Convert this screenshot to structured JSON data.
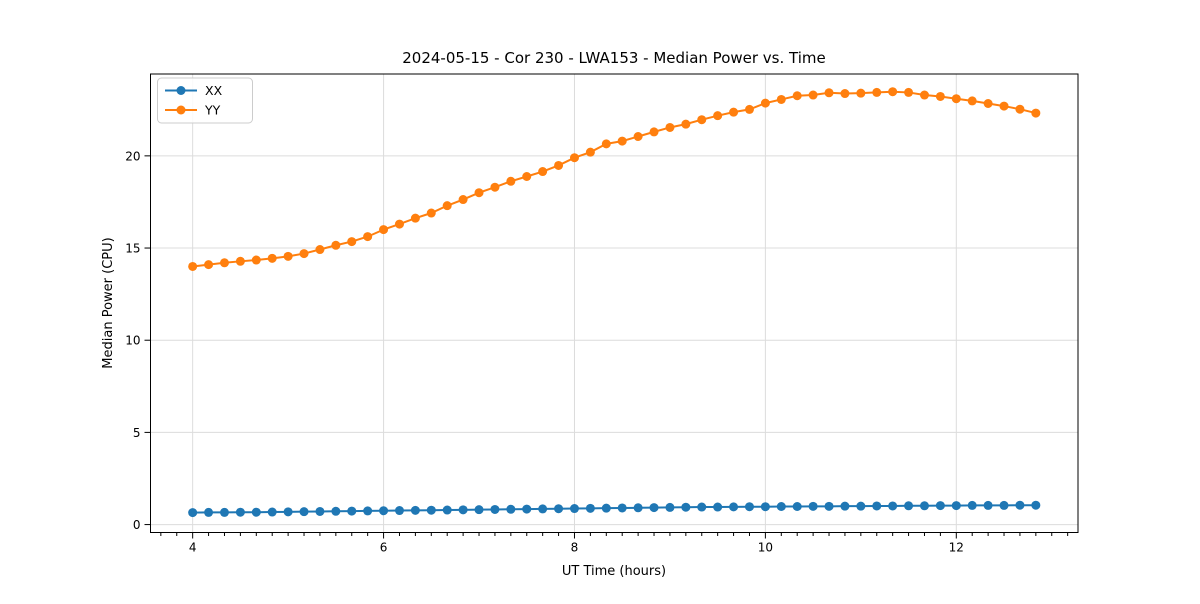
{
  "figure": {
    "background": "#ffffff"
  },
  "chart_data": {
    "type": "line",
    "title": "2024-05-15 - Cor 230 - LWA153 - Median Power vs. Time",
    "xlabel": "UT Time (hours)",
    "ylabel": "Median Power (CPU)",
    "xlim": [
      3.5583,
      13.275
    ],
    "ylim": [
      -0.43,
      24.44
    ],
    "x_major_ticks": [
      4,
      6,
      8,
      10,
      12
    ],
    "x_tick_labels": [
      "4",
      "6",
      "8",
      "10",
      "12"
    ],
    "x_minor_tick_step": 0.166667,
    "y_major_ticks": [
      0,
      5,
      10,
      15,
      20
    ],
    "y_tick_labels": [
      "0",
      "5",
      "10",
      "15",
      "20"
    ],
    "grid": true,
    "legend": {
      "position": "upper-left",
      "entries": [
        "XX",
        "YY"
      ]
    },
    "x": [
      4.0,
      4.1667,
      4.3333,
      4.5,
      4.6667,
      4.8333,
      5.0,
      5.1667,
      5.3333,
      5.5,
      5.6667,
      5.8333,
      6.0,
      6.1667,
      6.3333,
      6.5,
      6.6667,
      6.8333,
      7.0,
      7.1667,
      7.3333,
      7.5,
      7.6667,
      7.8333,
      8.0,
      8.1667,
      8.3333,
      8.5,
      8.6667,
      8.8333,
      9.0,
      9.1667,
      9.3333,
      9.5,
      9.6667,
      9.8333,
      10.0,
      10.1667,
      10.3333,
      10.5,
      10.6667,
      10.8333,
      11.0,
      11.1667,
      11.3333,
      11.5,
      11.6667,
      11.8333,
      12.0,
      12.1667,
      12.3333,
      12.5,
      12.6667,
      12.8333
    ],
    "series": [
      {
        "name": "XX",
        "color": "#1f77b4",
        "marker": "circle",
        "values": [
          0.65,
          0.66,
          0.66,
          0.67,
          0.67,
          0.68,
          0.69,
          0.7,
          0.71,
          0.72,
          0.73,
          0.74,
          0.75,
          0.76,
          0.77,
          0.78,
          0.79,
          0.8,
          0.81,
          0.82,
          0.83,
          0.84,
          0.85,
          0.86,
          0.87,
          0.88,
          0.89,
          0.9,
          0.91,
          0.92,
          0.93,
          0.94,
          0.95,
          0.95,
          0.96,
          0.97,
          0.97,
          0.98,
          0.98,
          0.99,
          0.99,
          1.0,
          1.0,
          1.01,
          1.01,
          1.02,
          1.02,
          1.03,
          1.03,
          1.04,
          1.04,
          1.04,
          1.05,
          1.05
        ]
      },
      {
        "name": "YY",
        "color": "#ff7f0e",
        "marker": "circle",
        "values": [
          14.0,
          14.1,
          14.2,
          14.28,
          14.35,
          14.44,
          14.55,
          14.7,
          14.92,
          15.15,
          15.35,
          15.62,
          16.0,
          16.3,
          16.62,
          16.9,
          17.3,
          17.63,
          18.0,
          18.3,
          18.62,
          18.88,
          19.15,
          19.48,
          19.9,
          20.2,
          20.65,
          20.8,
          21.05,
          21.3,
          21.54,
          21.72,
          21.96,
          22.18,
          22.37,
          22.52,
          22.86,
          23.06,
          23.26,
          23.3,
          23.42,
          23.38,
          23.4,
          23.44,
          23.48,
          23.44,
          23.3,
          23.22,
          23.1,
          22.98,
          22.84,
          22.7,
          22.53,
          22.32
        ]
      }
    ]
  },
  "style": {
    "grid_color": "#dcdcdc",
    "axis_color": "#000000",
    "legend_border_color": "#cccccc",
    "legend_bg": "#ffffff"
  }
}
